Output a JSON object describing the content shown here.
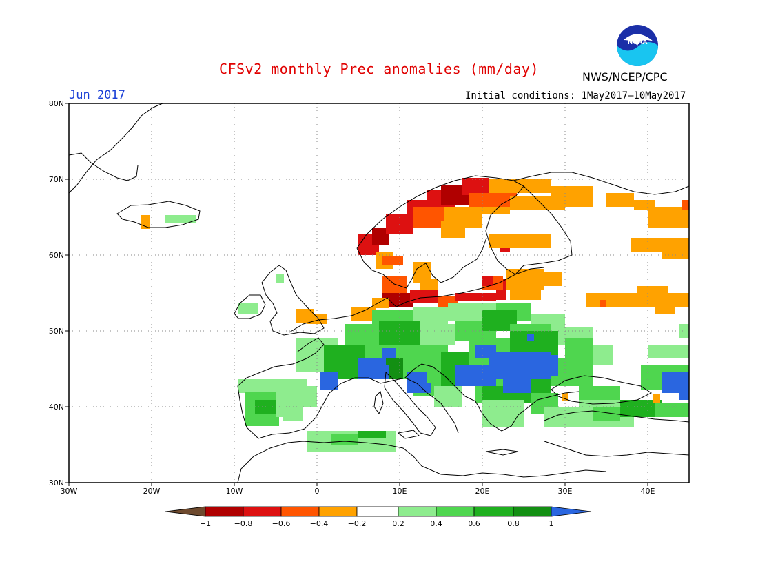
{
  "title": "CFSv2 monthly Prec anomalies (mm/day)",
  "agency": "NWS/NCEP/CPC",
  "logo_icon": "noaa-logo-icon",
  "logo_text": "NOAA",
  "valid_month": "Jun 2017",
  "initial_conditions": "Initial conditions: 1May2017—10May2017",
  "map": {
    "lon_range": [
      -30,
      45
    ],
    "lat_range": [
      30,
      80
    ],
    "lon_ticks": [
      "30W",
      "20W",
      "10W",
      "0",
      "10E",
      "20E",
      "30E",
      "40E"
    ],
    "lat_ticks": [
      "80N",
      "70N",
      "60N",
      "50N",
      "40N",
      "30N"
    ],
    "grid": "dotted"
  },
  "colorbar": {
    "labels": [
      "−1",
      "−0.8",
      "−0.6",
      "−0.4",
      "−0.2",
      "0.2",
      "0.4",
      "0.6",
      "0.8",
      "1"
    ],
    "colors": {
      "below_min": "#6e4a2e",
      "m1_m08": "#b00000",
      "m08_m06": "#dd1111",
      "m06_m04": "#ff5500",
      "m04_m02": "#ffa200",
      "m02_02": "#ffffff",
      "p02_04": "#8eec8e",
      "p04_06": "#4fd64f",
      "p06_08": "#1fb01f",
      "p08_1": "#138f13",
      "above_max": "#2a66e0"
    }
  }
}
